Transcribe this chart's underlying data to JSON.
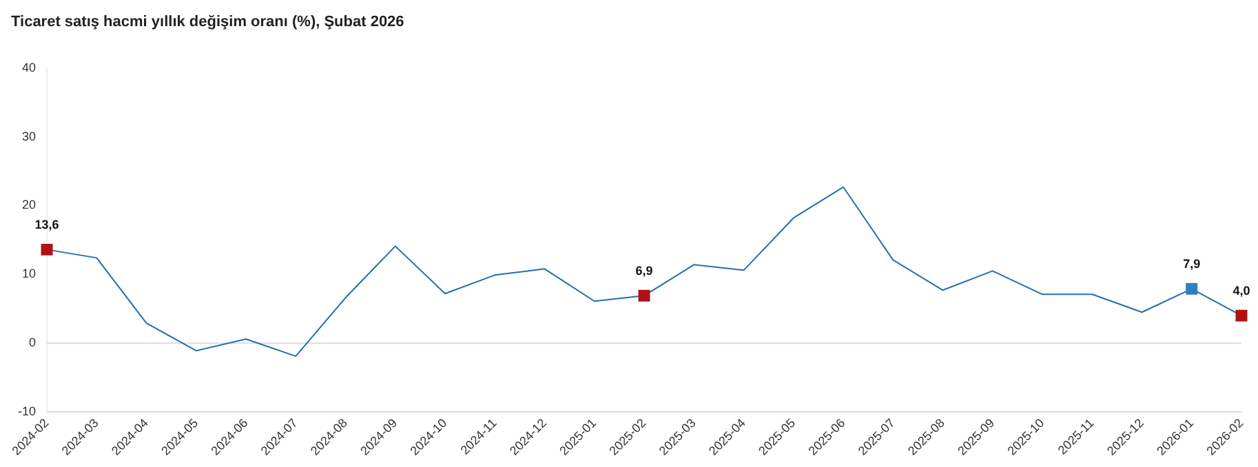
{
  "chart_data": {
    "type": "line",
    "title": "Ticaret satış hacmi yıllık değişim oranı (%), Şubat 2026",
    "categories": [
      "2024-02",
      "2024-03",
      "2024-04",
      "2024-05",
      "2024-06",
      "2024-07",
      "2024-08",
      "2024-09",
      "2024-10",
      "2024-11",
      "2024-12",
      "2025-01",
      "2025-02",
      "2025-03",
      "2025-04",
      "2025-05",
      "2025-06",
      "2025-07",
      "2025-08",
      "2025-09",
      "2025-10",
      "2025-11",
      "2025-12",
      "2026-01",
      "2026-02"
    ],
    "series": [
      {
        "color": "#1f6fb4",
        "values": [
          13.6,
          12.4,
          2.9,
          -1.1,
          0.6,
          -1.9,
          6.6,
          14.1,
          7.2,
          9.9,
          10.8,
          6.1,
          6.9,
          11.4,
          10.6,
          18.2,
          22.7,
          12.1,
          7.7,
          10.5,
          7.1,
          7.1,
          4.5,
          7.9,
          4.0
        ],
        "colors": [
          "#b01116",
          null,
          null,
          null,
          null,
          null,
          null,
          null,
          null,
          null,
          null,
          null,
          "#b01116",
          null,
          null,
          null,
          null,
          null,
          null,
          null,
          null,
          null,
          null,
          "#2f7fc1",
          "#b01116"
        ],
        "value_labels": [
          "13,6",
          null,
          null,
          null,
          null,
          null,
          null,
          null,
          null,
          null,
          null,
          null,
          "6,9",
          null,
          null,
          null,
          null,
          null,
          null,
          null,
          null,
          null,
          null,
          "7,9",
          "4,0"
        ]
      }
    ],
    "ylim": [
      -10,
      40
    ],
    "yticks": [
      -10,
      0,
      10,
      20,
      30,
      40
    ],
    "grid": false,
    "legend": false,
    "line_style": "solid",
    "ref_lines": [
      {
        "axis": "y",
        "value": 0,
        "color": "#dddddd"
      }
    ]
  }
}
